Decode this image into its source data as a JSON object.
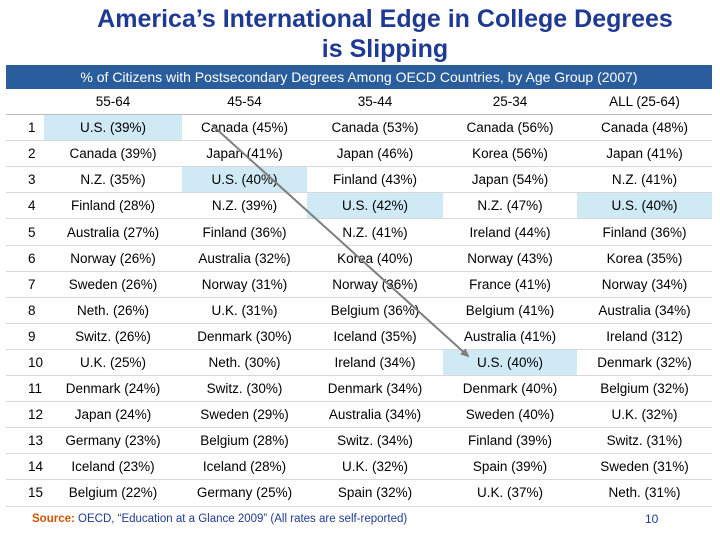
{
  "title_line1": "America’s International Edge in College Degrees",
  "title_line2": "is Slipping",
  "subtitle": "% of Citizens with Postsecondary Degrees Among OECD Countries, by Age Group (2007)",
  "table": {
    "headers": [
      "",
      "55-64",
      "45-54",
      "35-44",
      "25-34",
      "ALL (25-64)"
    ],
    "rows": [
      [
        "1",
        "U.S. (39%)",
        "Canada (45%)",
        "Canada (53%)",
        "Canada (56%)",
        "Canada (48%)"
      ],
      [
        "2",
        "Canada (39%)",
        "Japan (41%)",
        "Japan (46%)",
        "Korea (56%)",
        "Japan (41%)"
      ],
      [
        "3",
        "N.Z. (35%)",
        "U.S. (40%)",
        "Finland (43%)",
        "Japan (54%)",
        "N.Z. (41%)"
      ],
      [
        "4",
        "Finland (28%)",
        "N.Z. (39%)",
        "U.S. (42%)",
        "N.Z. (47%)",
        "U.S. (40%)"
      ],
      [
        "5",
        "Australia (27%)",
        "Finland (36%)",
        "N.Z. (41%)",
        "Ireland (44%)",
        "Finland (36%)"
      ],
      [
        "6",
        "Norway (26%)",
        "Australia (32%)",
        "Korea (40%)",
        "Norway (43%)",
        "Korea (35%)"
      ],
      [
        "7",
        "Sweden (26%)",
        "Norway (31%)",
        "Norway (36%)",
        "France (41%)",
        "Norway (34%)"
      ],
      [
        "8",
        "Neth. (26%)",
        "U.K. (31%)",
        "Belgium (36%)",
        "Belgium (41%)",
        "Australia (34%)"
      ],
      [
        "9",
        "Switz. (26%)",
        "Denmark (30%)",
        "Iceland (35%)",
        "Australia (41%)",
        "Ireland (312)"
      ],
      [
        "10",
        "U.K. (25%)",
        "Neth. (30%)",
        "Ireland (34%)",
        "U.S. (40%)",
        "Denmark (32%)"
      ],
      [
        "11",
        "Denmark (24%)",
        "Switz. (30%)",
        "Denmark (34%)",
        "Denmark (40%)",
        "Belgium (32%)"
      ],
      [
        "12",
        "Japan (24%)",
        "Sweden (29%)",
        "Australia (34%)",
        "Sweden (40%)",
        "U.K. (32%)"
      ],
      [
        "13",
        "Germany (23%)",
        "Belgium (28%)",
        "Switz. (34%)",
        "Finland (39%)",
        "Switz. (31%)"
      ],
      [
        "14",
        "Iceland (23%)",
        "Iceland (28%)",
        "U.K. (32%)",
        "Spain (39%)",
        "Sweden (31%)"
      ],
      [
        "15",
        "Belgium (22%)",
        "Germany (25%)",
        "Spain (32%)",
        "U.K. (37%)",
        "Neth. (31%)"
      ]
    ],
    "highlighted_cells": [
      [
        0,
        1
      ],
      [
        2,
        2
      ],
      [
        3,
        3
      ],
      [
        9,
        4
      ],
      [
        3,
        5
      ]
    ],
    "highlight_color": "#cfe9f5"
  },
  "source_label": "Source:",
  "source_text": " OECD, “Education at a Glance 2009” (All rates are self-reported)",
  "page_number": "10",
  "colors": {
    "title": "#1f3a93",
    "banner": "#2a5d9c",
    "source_label": "#d35400",
    "arrow": "#7f7f7f"
  }
}
